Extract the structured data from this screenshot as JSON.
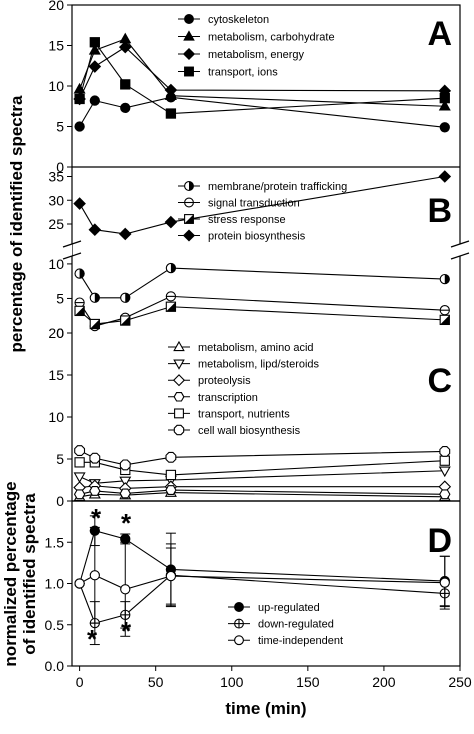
{
  "chart_data": {
    "type": "line",
    "xlabel": "time (min)",
    "ylabel_upper": "percentage of identified spectra",
    "ylabel_lower": "normalized percentage of identified spectra",
    "xlim": [
      -5,
      250
    ],
    "xticks": [
      0,
      50,
      100,
      150,
      200,
      250
    ],
    "panels": [
      {
        "id": "A",
        "ylim": [
          0,
          20
        ],
        "yticks": [
          0,
          5,
          10,
          15,
          20
        ],
        "series": [
          {
            "name": "cytoskeleton",
            "marker": "circle",
            "x": [
              0,
              10,
              30,
              60,
              240
            ],
            "y": [
              5,
              8.2,
              7.3,
              8.6,
              4.9
            ]
          },
          {
            "name": "metabolism, carbohydrate",
            "marker": "triangle",
            "x": [
              0,
              10,
              30,
              60,
              240
            ],
            "y": [
              9.6,
              14.4,
              15.8,
              8.8,
              7.5
            ]
          },
          {
            "name": "metabolism, energy",
            "marker": "diamond",
            "x": [
              0,
              10,
              30,
              60,
              240
            ],
            "y": [
              8.4,
              12.4,
              14.8,
              9.5,
              9.4
            ]
          },
          {
            "name": "transport, ions",
            "marker": "square",
            "x": [
              0,
              10,
              30,
              60,
              240
            ],
            "y": [
              8.4,
              15.4,
              10.2,
              6.6,
              8.5
            ]
          }
        ]
      },
      {
        "id": "B",
        "ylim_top": [
          21,
          37
        ],
        "yticks_top": [
          25,
          30,
          35
        ],
        "ylim_bottom": [
          0,
          11
        ],
        "yticks_bottom": [
          0,
          5,
          10
        ],
        "series": [
          {
            "name": "membrane/protein trafficking",
            "marker": "half-circle",
            "x": [
              0,
              10,
              30,
              60,
              240
            ],
            "y": [
              8.6,
              5.1,
              5.1,
              9.4,
              7.8
            ]
          },
          {
            "name": "signal transduction",
            "marker": "circle-line",
            "x": [
              0,
              10,
              30,
              60,
              240
            ],
            "y": [
              4.4,
              1.0,
              2.2,
              5.3,
              3.3
            ]
          },
          {
            "name": "stress response",
            "marker": "half-square",
            "x": [
              0,
              10,
              30,
              60,
              240
            ],
            "y": [
              3.2,
              1.3,
              1.8,
              3.8,
              1.9
            ]
          },
          {
            "name": "protein biosynthesis",
            "marker": "diamond",
            "x": [
              0,
              10,
              30,
              60,
              240
            ],
            "y": [
              29.3,
              23.8,
              22.9,
              25.4,
              35.0
            ]
          }
        ]
      },
      {
        "id": "C",
        "ylim": [
          0,
          20
        ],
        "yticks": [
          0,
          5,
          10,
          15,
          20
        ],
        "series": [
          {
            "name": "metabolism, amino acid",
            "marker": "triangle-open",
            "x": [
              0,
              10,
              30,
              60,
              240
            ],
            "y": [
              0.5,
              0.8,
              0.7,
              1.0,
              0.5
            ]
          },
          {
            "name": "metabolism, lipd/steroids",
            "marker": "triangle-down-open",
            "x": [
              0,
              10,
              30,
              60,
              240
            ],
            "y": [
              2.9,
              2.1,
              2.4,
              2.5,
              3.6
            ]
          },
          {
            "name": "proteolysis",
            "marker": "diamond-open",
            "x": [
              0,
              10,
              30,
              60,
              240
            ],
            "y": [
              1.6,
              1.8,
              1.5,
              1.7,
              1.7
            ]
          },
          {
            "name": "transcription",
            "marker": "hexagon-open",
            "x": [
              0,
              10,
              30,
              60,
              240
            ],
            "y": [
              0.8,
              1.2,
              0.9,
              1.3,
              0.8
            ]
          },
          {
            "name": "transport, nutrients",
            "marker": "square-open",
            "x": [
              0,
              10,
              30,
              60,
              240
            ],
            "y": [
              4.6,
              4.6,
              3.7,
              3.1,
              4.8
            ]
          },
          {
            "name": "cell wall biosynthesis",
            "marker": "octagon-open",
            "x": [
              0,
              10,
              30,
              60,
              240
            ],
            "y": [
              6.0,
              5.1,
              4.3,
              5.2,
              5.9
            ]
          }
        ]
      },
      {
        "id": "D",
        "ylim": [
          0,
          2.0
        ],
        "yticks": [
          0.0,
          0.5,
          1.0,
          1.5
        ],
        "series": [
          {
            "name": "up-regulated",
            "marker": "circle",
            "x": [
              0,
              10,
              30,
              60,
              240
            ],
            "y": [
              1.0,
              1.64,
              1.54,
              1.17,
              1.03
            ],
            "err": [
              0,
              0.18,
              0.06,
              0.44,
              0.3
            ]
          },
          {
            "name": "down-regulated",
            "marker": "circle-cross",
            "x": [
              0,
              10,
              30,
              60,
              240
            ],
            "y": [
              1.0,
              0.52,
              0.62,
              1.1,
              0.88
            ],
            "err": [
              0,
              0.26,
              0.16,
              0.38,
              0.16
            ]
          },
          {
            "name": "time-independent",
            "marker": "circle-open",
            "x": [
              0,
              10,
              30,
              60,
              240
            ],
            "y": [
              1.0,
              1.1,
              0.93,
              1.09,
              1.01
            ],
            "err": [
              0,
              0.58,
              0.57,
              0.34,
              0.32
            ]
          }
        ],
        "annotations": [
          "*",
          "*",
          "*",
          "*"
        ]
      }
    ]
  }
}
